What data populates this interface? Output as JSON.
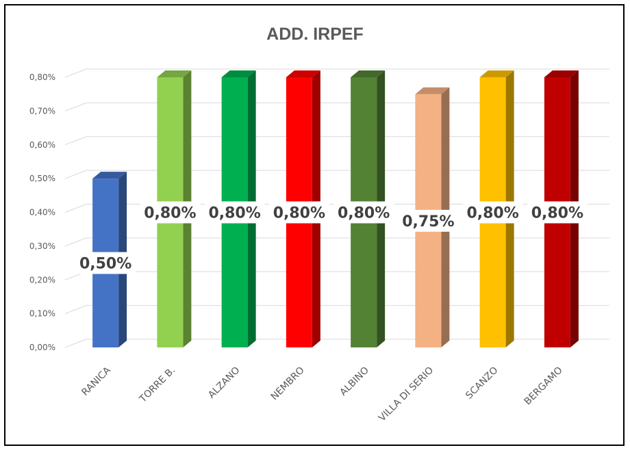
{
  "chart_data": {
    "type": "bar",
    "title": "ADD. IRPEF",
    "xlabel": "",
    "ylabel": "",
    "ylim": [
      0,
      0.8
    ],
    "yticks": [
      "0,00%",
      "0,10%",
      "0,20%",
      "0,30%",
      "0,40%",
      "0,50%",
      "0,60%",
      "0,70%",
      "0,80%"
    ],
    "grid": true,
    "legend": "none",
    "bar_style": "3d",
    "categories": [
      "RANICA",
      "TORRE B.",
      "ALZANO",
      "NEMBRO",
      "ALBINO",
      "VILLA DI SERIO",
      "SCANZO",
      "BERGAMO"
    ],
    "values": [
      0.5,
      0.8,
      0.8,
      0.8,
      0.8,
      0.75,
      0.8,
      0.8
    ],
    "data_labels": [
      "0,50%",
      "0,80%",
      "0,80%",
      "0,80%",
      "0,80%",
      "0,75%",
      "0,80%",
      "0,80%"
    ],
    "colors": [
      "#4472C4",
      "#92D050",
      "#00B050",
      "#FF0000",
      "#548235",
      "#F4B183",
      "#FFC000",
      "#C00000"
    ]
  }
}
